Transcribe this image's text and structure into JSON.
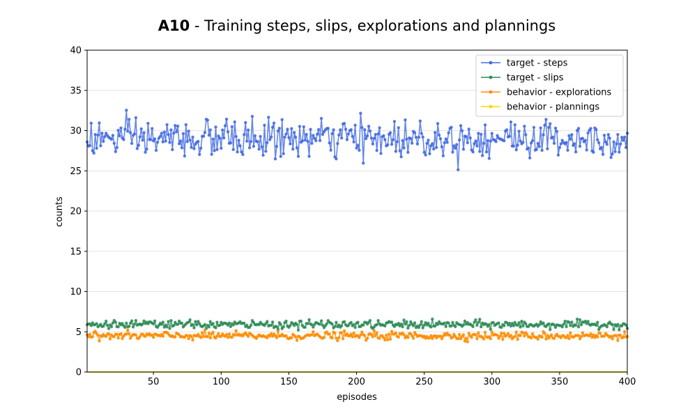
{
  "chart_data": {
    "type": "line",
    "title_bold": "A10",
    "title_rest": " - Training steps, slips, explorations and plannings",
    "xlabel": "episodes",
    "ylabel": "counts",
    "xlim": [
      1,
      400
    ],
    "ylim": [
      0,
      40
    ],
    "xticks": [
      50,
      100,
      150,
      200,
      250,
      300,
      350,
      400
    ],
    "yticks": [
      0,
      5,
      10,
      15,
      20,
      25,
      30,
      35,
      40
    ],
    "grid": "horizontal",
    "legend_position": "top-right",
    "series": [
      {
        "name": "target - steps",
        "color": "#4169e1",
        "mean": 29.0,
        "spread": 3.8,
        "min_seen": 24.7,
        "max_seen": 33.1
      },
      {
        "name": "target - slips",
        "color": "#2e8b57",
        "mean": 5.9,
        "spread": 0.8,
        "min_seen": 5.0,
        "max_seen": 6.9
      },
      {
        "name": "behavior - explorations",
        "color": "#ff8c00",
        "mean": 4.5,
        "spread": 0.8,
        "min_seen": 3.7,
        "max_seen": 5.3
      },
      {
        "name": "behavior - plannings",
        "color": "#ffd700",
        "mean": 0.0,
        "spread": 0.0,
        "min_seen": 0.0,
        "max_seen": 0.0
      }
    ]
  }
}
